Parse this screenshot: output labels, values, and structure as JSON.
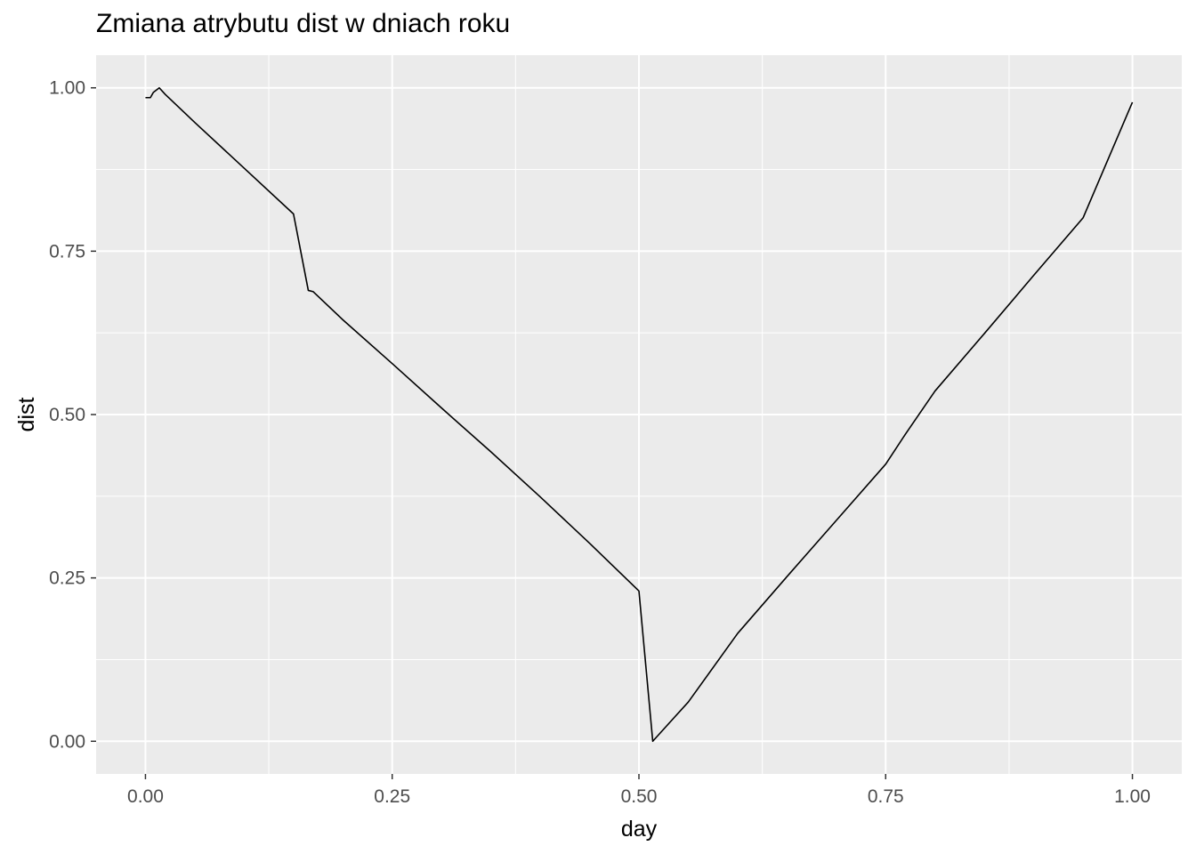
{
  "chart_data": {
    "type": "line",
    "title": "Zmiana atrybutu dist w dniach roku",
    "xlabel": "day",
    "ylabel": "dist",
    "xlim": [
      -0.05,
      1.05
    ],
    "ylim": [
      -0.05,
      1.05
    ],
    "x_ticks": [
      0,
      0.25,
      0.5,
      0.75,
      1
    ],
    "x_tick_labels": [
      "0.00",
      "0.25",
      "0.50",
      "0.75",
      "1.00"
    ],
    "y_ticks": [
      0,
      0.25,
      0.5,
      0.75,
      1
    ],
    "y_tick_labels": [
      "0.00",
      "0.25",
      "0.50",
      "0.75",
      "1.00"
    ],
    "grid": true,
    "panel_background": "#ebebeb",
    "grid_color": "#ffffff",
    "line_color": "#000000",
    "series": [
      {
        "x": [
          0.0,
          0.005,
          0.008,
          0.014,
          0.02,
          0.05,
          0.1,
          0.15,
          0.165,
          0.17,
          0.2,
          0.25,
          0.3,
          0.35,
          0.4,
          0.45,
          0.5,
          0.514,
          0.55,
          0.6,
          0.65,
          0.7,
          0.75,
          0.77,
          0.8,
          0.85,
          0.9,
          0.95,
          1.0
        ],
        "y": [
          0.985,
          0.985,
          0.993,
          1.0,
          0.99,
          0.947,
          0.877,
          0.807,
          0.69,
          0.688,
          0.645,
          0.578,
          0.51,
          0.443,
          0.374,
          0.303,
          0.23,
          0.0,
          0.06,
          0.165,
          0.252,
          0.338,
          0.424,
          0.47,
          0.536,
          0.624,
          0.713,
          0.801,
          0.978
        ]
      }
    ]
  }
}
